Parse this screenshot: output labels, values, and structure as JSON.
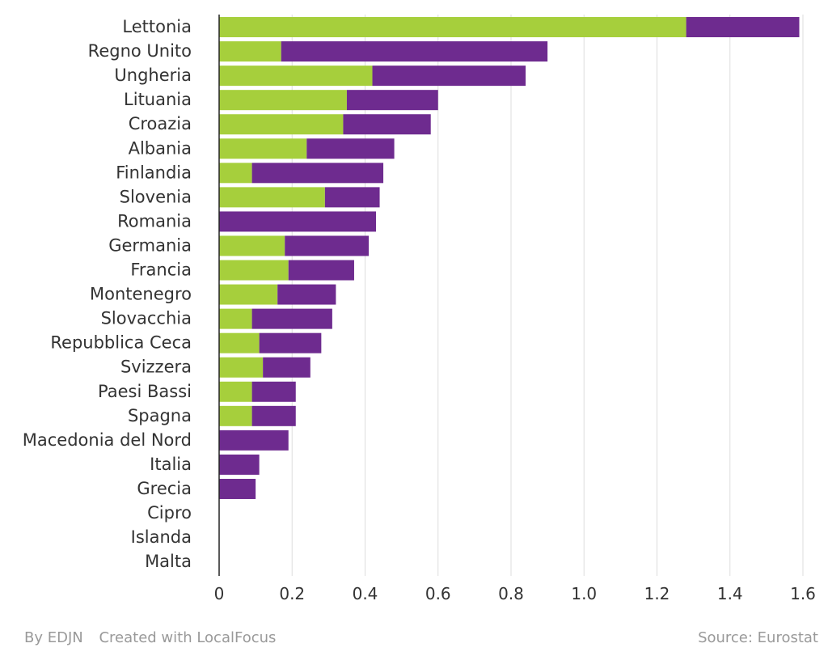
{
  "chart_data": {
    "type": "bar",
    "orientation": "horizontal",
    "stacked": true,
    "categories": [
      "Lettonia",
      "Regno Unito",
      "Ungheria",
      "Lituania",
      "Croazia",
      "Albania",
      "Finlandia",
      "Slovenia",
      "Romania",
      "Germania",
      "Francia",
      "Montenegro",
      "Slovacchia",
      "Repubblica Ceca",
      "Svizzera",
      "Paesi Bassi",
      "Spagna",
      "Macedonia del Nord",
      "Italia",
      "Grecia",
      "Cipro",
      "Islanda",
      "Malta"
    ],
    "series": [
      {
        "color": "#a6cf3c",
        "values": [
          1.28,
          0.17,
          0.42,
          0.35,
          0.34,
          0.24,
          0.09,
          0.29,
          0,
          0.18,
          0.19,
          0.16,
          0.09,
          0.11,
          0.12,
          0.09,
          0.09,
          0,
          0,
          0,
          0,
          0,
          0
        ]
      },
      {
        "color": "#6e2b8f",
        "values": [
          0.31,
          0.73,
          0.42,
          0.25,
          0.24,
          0.24,
          0.36,
          0.15,
          0.43,
          0.23,
          0.18,
          0.16,
          0.22,
          0.17,
          0.13,
          0.12,
          0.12,
          0.19,
          0.11,
          0.1,
          0,
          0,
          0
        ]
      }
    ],
    "xlim": [
      0,
      1.6
    ],
    "xticks": [
      "0",
      "0.2",
      "0.4",
      "0.6",
      "0.8",
      "1.0",
      "1.2",
      "1.4",
      "1.6"
    ],
    "grid": true,
    "legend": "none"
  },
  "footer": {
    "by": "By EDJN",
    "created": "Created with LocalFocus",
    "source": "Source: Eurostat"
  },
  "colors": {
    "grid": "#dddddd",
    "axis": "#222222",
    "text": "#333333",
    "footer": "#999999"
  }
}
